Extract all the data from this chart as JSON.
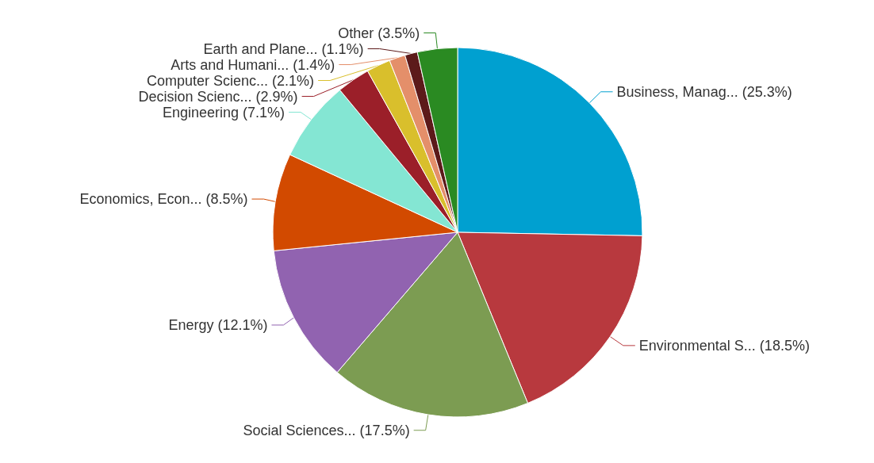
{
  "chart_data": {
    "type": "pie",
    "categories": [
      "Business, Manag...",
      "Environmental S...",
      "Social Sciences...",
      "Energy",
      "Economics, Econ...",
      "Engineering",
      "Decision Scienc...",
      "Computer Scienc...",
      "Arts and Humani...",
      "Earth and Plane...",
      "Other"
    ],
    "values": [
      25.3,
      18.5,
      17.5,
      12.1,
      8.5,
      7.1,
      2.9,
      2.1,
      1.4,
      1.1,
      3.5
    ],
    "colors": [
      "#00a0d0",
      "#b8393e",
      "#7c9c52",
      "#9163b0",
      "#d24a00",
      "#84e6d3",
      "#9b1f29",
      "#d9bf2c",
      "#e48f6a",
      "#5c1a1a",
      "#2a8a22"
    ],
    "value_labels": [
      "(25.3%)",
      "(18.5%)",
      "(17.5%)",
      "(12.1%)",
      "(8.5%)",
      "(7.1%)",
      "(2.9%)",
      "(2.1%)",
      "(1.4%)",
      "(1.1%)",
      "(3.5%)"
    ],
    "legend": false
  }
}
